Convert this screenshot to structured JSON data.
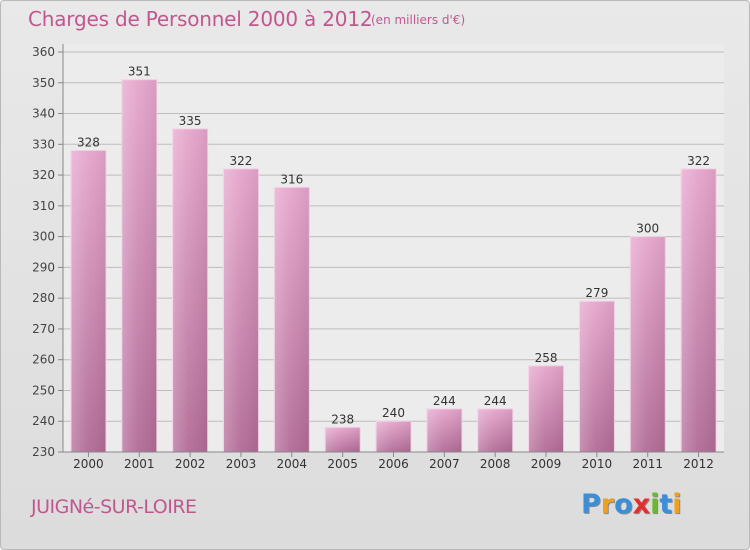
{
  "header": {
    "title": "Charges de Personnel 2000 à 2012",
    "subtitle": "(en milliers d'€)"
  },
  "footer": {
    "commune": "JUIGNé-SUR-LOIRE",
    "logo": "Proxiti",
    "logo_letters": [
      {
        "char": "P",
        "color": "#3b8fd8"
      },
      {
        "char": "r",
        "color": "#f0a020"
      },
      {
        "char": "o",
        "color": "#3b8fd8"
      },
      {
        "char": "x",
        "color": "#e03030"
      },
      {
        "char": "i",
        "color": "#6ab830"
      },
      {
        "char": "t",
        "color": "#3b8fd8"
      },
      {
        "char": "i",
        "color": "#f0a020"
      }
    ]
  },
  "colors": {
    "bar_top": "#e6a6cc",
    "bar_bottom": "#b26c97",
    "title": "#c2578f",
    "grid": "#bdbdbd"
  },
  "chart_data": {
    "type": "bar",
    "categories": [
      "2000",
      "2001",
      "2002",
      "2003",
      "2004",
      "2005",
      "2006",
      "2007",
      "2008",
      "2009",
      "2010",
      "2011",
      "2012"
    ],
    "values": [
      328,
      351,
      335,
      322,
      316,
      238,
      240,
      244,
      244,
      258,
      279,
      300,
      322
    ],
    "ylim": [
      230,
      360
    ],
    "yticks": [
      230,
      240,
      250,
      260,
      270,
      280,
      290,
      300,
      310,
      320,
      330,
      340,
      350,
      360
    ],
    "grid": true
  }
}
